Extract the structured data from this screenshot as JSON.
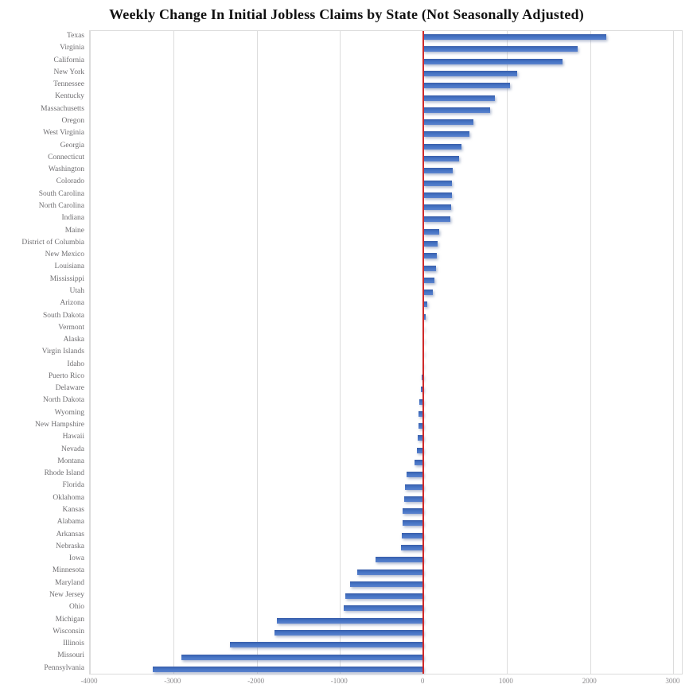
{
  "chart_data": {
    "type": "bar",
    "orientation": "horizontal",
    "title": "Weekly Change In Initial Jobless Claims by State (Not Seasonally Adjusted)",
    "xlabel": "",
    "ylabel": "",
    "xlim": [
      -4000,
      3120
    ],
    "xticks": [
      -4000,
      -3000,
      -2000,
      -1000,
      0,
      1000,
      2000,
      3000
    ],
    "grid": true,
    "legend": "none",
    "bar_color": "#4472C4",
    "zero_line_color": "#CF2A2A",
    "gridline_color": "#DCDCDC",
    "categories": [
      "Texas",
      "Virginia",
      "California",
      "New York",
      "Tennessee",
      "Kentucky",
      "Massachusetts",
      "Oregon",
      "West Virginia",
      "Georgia",
      "Connecticut",
      "Washington",
      "Colorado",
      "South Carolina",
      "North Carolina",
      "Indiana",
      "Maine",
      "District of Columbia",
      "New Mexico",
      "Louisiana",
      "Mississippi",
      "Utah",
      "Arizona",
      "South Dakota",
      "Vermont",
      "Alaska",
      "Virgin Islands",
      "Idaho",
      "Puerto Rico",
      "Delaware",
      "North Dakota",
      "Wyoming",
      "New Hampshire",
      "Hawaii",
      "Nevada",
      "Montana",
      "Rhode Island",
      "Florida",
      "Oklahoma",
      "Kansas",
      "Alabama",
      "Arkansas",
      "Nebraska",
      "Iowa",
      "Minnesota",
      "Maryland",
      "New Jersey",
      "Ohio",
      "Michigan",
      "Wisconsin",
      "Illinois",
      "Missouri",
      "Pennsylvania"
    ],
    "values": [
      2190,
      1850,
      1670,
      1130,
      1040,
      860,
      800,
      600,
      550,
      460,
      430,
      355,
      345,
      340,
      330,
      325,
      190,
      170,
      160,
      150,
      130,
      110,
      50,
      30,
      10,
      5,
      -5,
      -10,
      -20,
      -30,
      -45,
      -55,
      -60,
      -65,
      -75,
      -110,
      -205,
      -220,
      -230,
      -245,
      -250,
      -255,
      -265,
      -575,
      -790,
      -880,
      -940,
      -955,
      -1760,
      -1790,
      -2320,
      -2905,
      -3250
    ]
  }
}
